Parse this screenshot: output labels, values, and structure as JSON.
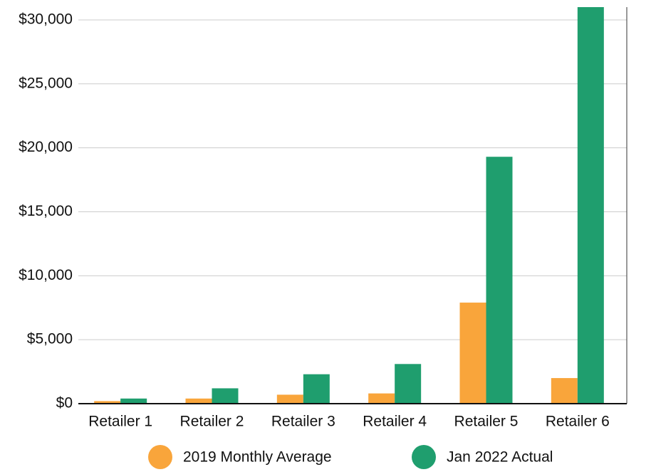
{
  "chart_data": {
    "type": "bar",
    "categories": [
      "Retailer 1",
      "Retailer 2",
      "Retailer 3",
      "Retailer 4",
      "Retailer 5",
      "Retailer 6"
    ],
    "series": [
      {
        "name": "2019 Monthly Average",
        "color": "#f9a53b",
        "values": [
          200,
          400,
          700,
          800,
          7900,
          2000
        ]
      },
      {
        "name": "Jan 2022 Actual",
        "color": "#1f9e6e",
        "values": [
          400,
          1200,
          2300,
          3100,
          19300,
          31000
        ]
      }
    ],
    "ylim": [
      0,
      31000
    ],
    "yticks": [
      {
        "value": 0,
        "label": "$0"
      },
      {
        "value": 5000,
        "label": "$5,000"
      },
      {
        "value": 10000,
        "label": "$10,000"
      },
      {
        "value": 15000,
        "label": "$15,000"
      },
      {
        "value": 20000,
        "label": "$20,000"
      },
      {
        "value": 25000,
        "label": "$25,000"
      },
      {
        "value": 30000,
        "label": "$30,000"
      }
    ],
    "grid": true,
    "legend": "bottom"
  }
}
